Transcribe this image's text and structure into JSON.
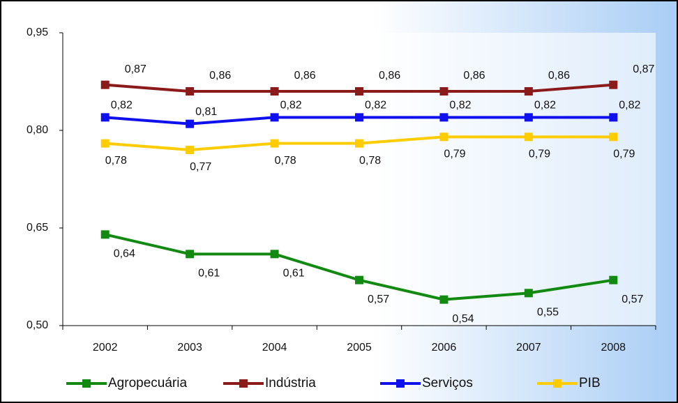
{
  "chart_data": {
    "type": "line",
    "categories": [
      "2002",
      "2003",
      "2004",
      "2005",
      "2006",
      "2007",
      "2008"
    ],
    "series": [
      {
        "name": "Agropecuária",
        "color": "#128a12",
        "values": [
          0.64,
          0.61,
          0.61,
          0.57,
          0.54,
          0.55,
          0.57
        ],
        "value_labels": [
          "0,64",
          "0,61",
          "0,61",
          "0,57",
          "0,54",
          "0,55",
          "0,57"
        ]
      },
      {
        "name": "Indústria",
        "color": "#8b1a1a",
        "values": [
          0.87,
          0.86,
          0.86,
          0.86,
          0.86,
          0.86,
          0.87
        ],
        "value_labels": [
          "0,87",
          "0,86",
          "0,86",
          "0,86",
          "0,86",
          "0,86",
          "0,87"
        ]
      },
      {
        "name": "Serviços",
        "color": "#1010ee",
        "values": [
          0.82,
          0.81,
          0.82,
          0.82,
          0.82,
          0.82,
          0.82
        ],
        "value_labels": [
          "0,82",
          "0,81",
          "0,82",
          "0,82",
          "0,82",
          "0,82",
          "0,82"
        ]
      },
      {
        "name": "PIB",
        "color": "#ffcc00",
        "values": [
          0.78,
          0.77,
          0.78,
          0.78,
          0.79,
          0.79,
          0.79
        ],
        "value_labels": [
          "0,78",
          "0,77",
          "0,78",
          "0,78",
          "0,79",
          "0,79",
          "0,79"
        ]
      }
    ],
    "ylim": [
      0.5,
      0.95
    ],
    "yticks": [
      {
        "value": 0.5,
        "label": "0,50"
      },
      {
        "value": 0.65,
        "label": "0,65"
      },
      {
        "value": 0.8,
        "label": "0,80"
      },
      {
        "value": 0.95,
        "label": "0,95"
      }
    ],
    "legend": "bottom"
  }
}
